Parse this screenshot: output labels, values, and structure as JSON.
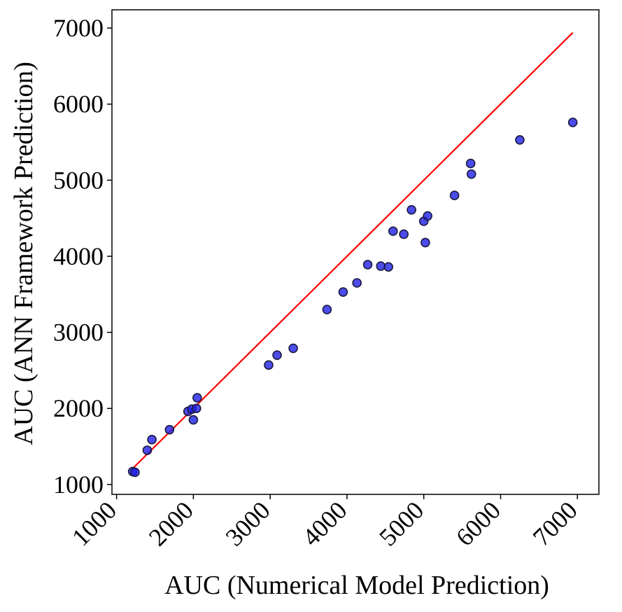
{
  "chart_data": {
    "type": "scatter",
    "title": "",
    "xlabel": "AUC (Numerical Model Prediction)",
    "ylabel": "AUC (ANN Framework Prediction)",
    "xlim": [
      940,
      7280
    ],
    "ylim": [
      870,
      7240
    ],
    "xticks": [
      1000,
      2000,
      3000,
      4000,
      5000,
      6000,
      7000
    ],
    "yticks": [
      1000,
      2000,
      3000,
      4000,
      5000,
      6000,
      7000
    ],
    "xtick_labels": [
      "1000",
      "2000",
      "3000",
      "4000",
      "5000",
      "6000",
      "7000"
    ],
    "ytick_labels": [
      "1000",
      "2000",
      "3000",
      "4000",
      "5000",
      "6000",
      "7000"
    ],
    "grid": false,
    "legend": "none",
    "colors": {
      "points_fill": "#1f1fe6",
      "points_stroke": "#1a1a40",
      "reference_line": "#ff0000"
    },
    "reference_line": {
      "type": "identity",
      "x": [
        1200,
        6940
      ],
      "y": [
        1200,
        6940
      ]
    },
    "series": [
      {
        "x": [
          1210,
          1240,
          1400,
          1460,
          1690,
          1930,
          1980,
          2000,
          2040,
          2050,
          2980,
          3090,
          3300,
          3740,
          3950,
          4130,
          4270,
          4440,
          4540,
          4600,
          4740,
          4840,
          5000,
          5020,
          5050,
          5400,
          5610,
          5620,
          6250,
          6940
        ],
        "y": [
          1170,
          1160,
          1450,
          1590,
          1720,
          1960,
          1990,
          1850,
          2000,
          2140,
          2570,
          2700,
          2790,
          3300,
          3530,
          3650,
          3890,
          3870,
          3860,
          4330,
          4290,
          4610,
          4460,
          4180,
          4530,
          4800,
          5220,
          5080,
          5530,
          5760
        ]
      }
    ]
  }
}
